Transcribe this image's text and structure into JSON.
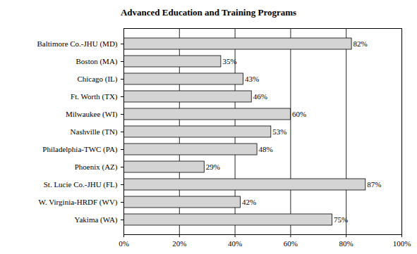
{
  "chart_data": {
    "type": "bar",
    "title": "Advanced Education and Training Programs",
    "orientation": "horizontal",
    "categories": [
      "Baltimore Co.-JHU (MD)",
      "Boston (MA)",
      "Chicago (IL)",
      "Ft. Worth (TX)",
      "Milwaukee (WI)",
      "Nashville (TN)",
      "Philadelphia-TWC (PA)",
      "Phoenix (AZ)",
      "St. Lucie Co.-JHU (FL)",
      "W. Virginia-HRDF (WV)",
      "Yakima (WA)"
    ],
    "values": [
      82,
      35,
      43,
      46,
      60,
      53,
      48,
      29,
      87,
      42,
      75
    ],
    "value_labels": [
      "82%",
      "35%",
      "43%",
      "46%",
      "60%",
      "53%",
      "48%",
      "29%",
      "87%",
      "42%",
      "75%"
    ],
    "data_labels": true,
    "color": "#d4d4d4",
    "xlim": [
      0,
      100
    ],
    "xticks": [
      {
        "value": 0,
        "label": "0%"
      },
      {
        "value": 20,
        "label": "20%"
      },
      {
        "value": 40,
        "label": "40%"
      },
      {
        "value": 60,
        "label": "60%"
      },
      {
        "value": 80,
        "label": "80%"
      },
      {
        "value": 100,
        "label": "100%"
      }
    ],
    "grid": true
  }
}
